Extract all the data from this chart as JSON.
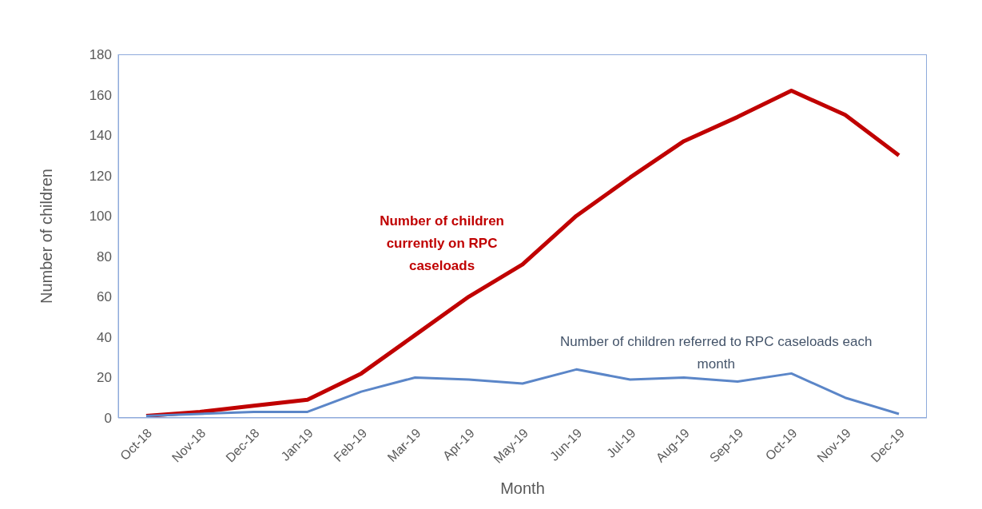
{
  "chart_data": {
    "type": "line",
    "xlabel": "Month",
    "ylabel": "Number of children",
    "categories": [
      "Oct-18",
      "Nov-18",
      "Dec-18",
      "Jan-19",
      "Feb-19",
      "Mar-19",
      "Apr-19",
      "May-19",
      "Jun-19",
      "Jul-19",
      "Aug-19",
      "Sep-19",
      "Oct-19",
      "Nov-19",
      "Dec-19"
    ],
    "series": [
      {
        "name": "Number of children currently on RPC caseloads",
        "color": "#c00000",
        "values": [
          1,
          3,
          6,
          9,
          22,
          41,
          60,
          76,
          100,
          119,
          137,
          149,
          162,
          150,
          130
        ]
      },
      {
        "name": "Number of children referred to RPC caseloads each month",
        "color": "#5b86c8",
        "values": [
          1,
          2,
          3,
          3,
          13,
          20,
          19,
          17,
          24,
          19,
          20,
          18,
          22,
          10,
          2
        ]
      }
    ],
    "ylim": [
      0,
      180
    ],
    "yticks": [
      0,
      20,
      40,
      60,
      80,
      100,
      120,
      140,
      160,
      180
    ],
    "grid": false,
    "legend": false,
    "marker": "none",
    "line_style": "solid"
  }
}
